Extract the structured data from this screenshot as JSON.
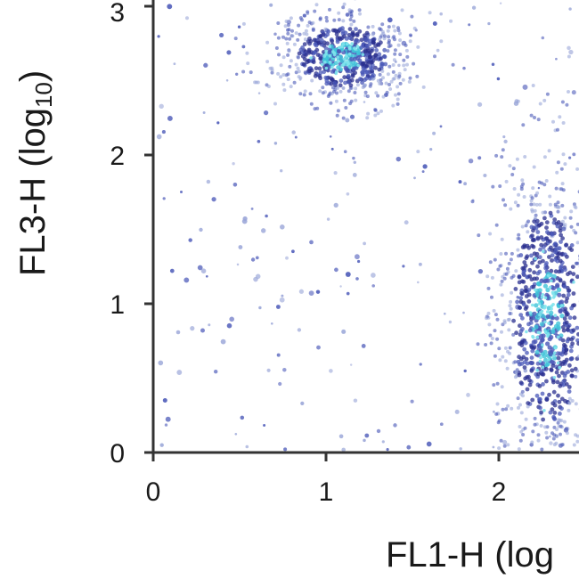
{
  "chart_data": {
    "type": "scatter",
    "title": "",
    "xlabel": "FL1-H (log",
    "ylabel_main": "FL3-H (log",
    "ylabel_sub": "10",
    "ylabel_close": ")",
    "xlim": [
      0,
      2.45
    ],
    "ylim": [
      0,
      3.02
    ],
    "x_ticks": [
      "0",
      "1",
      "2"
    ],
    "y_ticks": [
      "0",
      "1",
      "2",
      "3"
    ],
    "grid": false,
    "colors": {
      "axis": "#333333",
      "dense": "#2a2f8f",
      "mid": "#4a58b8",
      "light": "#9aa6d8",
      "core": "#3ec3d8",
      "hot": "#7fe3ec"
    },
    "populations": [
      {
        "cx": 1.1,
        "cy": 2.66,
        "sx": 0.2,
        "sy": 0.15,
        "n": 650
      },
      {
        "cx": 2.28,
        "cy": 0.9,
        "sx": 0.15,
        "sy": 0.55,
        "n": 900
      }
    ],
    "background_events": 230
  }
}
